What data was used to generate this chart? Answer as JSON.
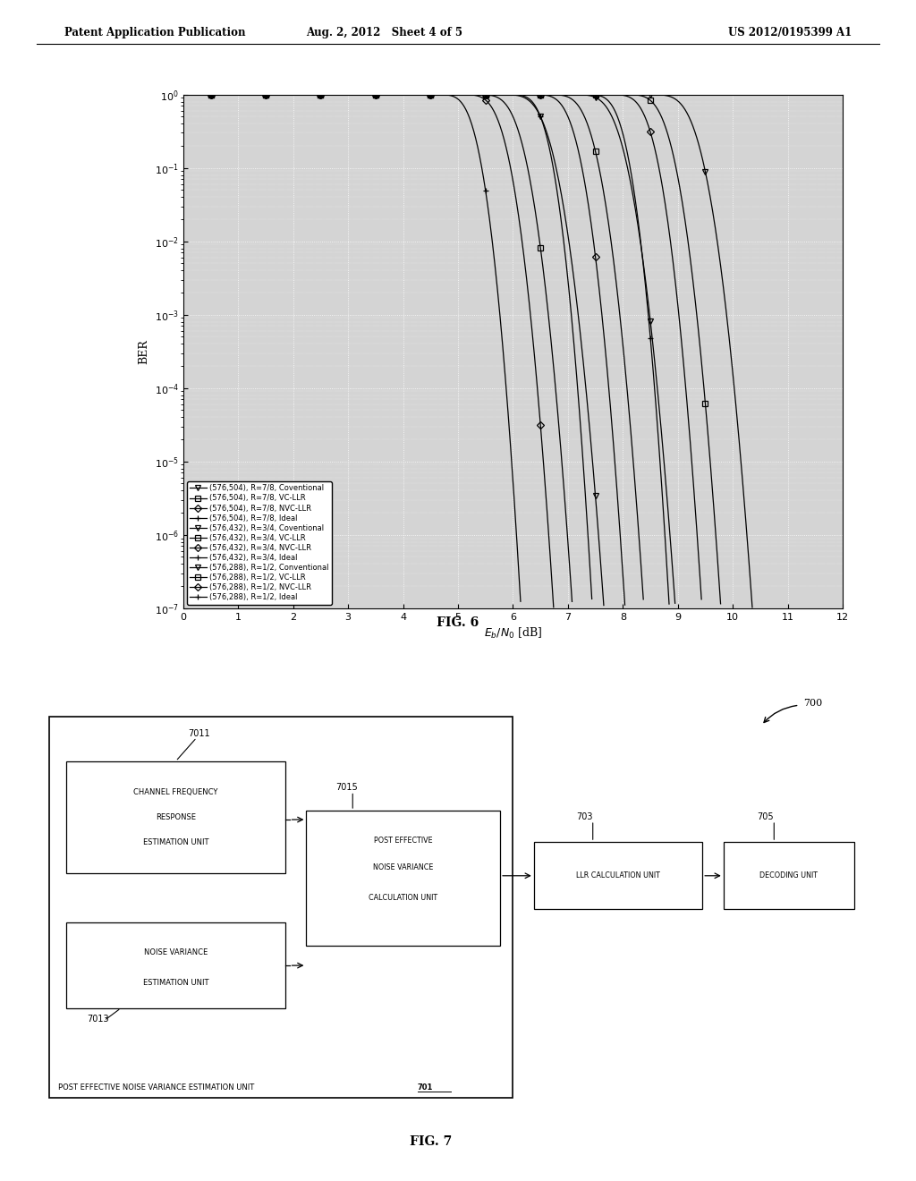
{
  "header_left": "Patent Application Publication",
  "header_center": "Aug. 2, 2012   Sheet 4 of 5",
  "header_right": "US 2012/0195399 A1",
  "fig6_title": "FIG. 6",
  "fig7_title": "FIG. 7",
  "xlabel": "$E_b/N_0$ [dB]",
  "ylabel": "BER",
  "xmin": 0,
  "xmax": 12,
  "ymin": 1e-07,
  "ymax": 1.0,
  "legend_entries": [
    "(576,504), R=7/8, Coventional",
    "(576,504), R=7/8, VC-LLR",
    "(576,504), R=7/8, NVC-LLR",
    "(576,504), R=7/8, Ideal",
    "(576,432), R=3/4, Coventional",
    "(576,432), R=3/4, VC-LLR",
    "(576,432), R=3/4, NVC-LLR",
    "(576,432), R=3/4, Ideal",
    "(576,288), R=1/2, Conventional",
    "(576,288), R=1/2, VC-LLR",
    "(576,288), R=1/2, NVC-LLR",
    "(576,288), R=1/2, Ideal"
  ],
  "markers": [
    "v",
    "s",
    "D",
    "+",
    "v",
    "s",
    "D",
    "+",
    "v",
    "s",
    "D",
    "+"
  ],
  "curve_params": [
    [
      6.5,
      4.5
    ],
    [
      6.0,
      4.8
    ],
    [
      5.7,
      5.0
    ],
    [
      5.2,
      5.5
    ],
    [
      7.8,
      4.5
    ],
    [
      7.3,
      4.8
    ],
    [
      7.0,
      5.0
    ],
    [
      6.5,
      5.5
    ],
    [
      9.2,
      4.5
    ],
    [
      8.7,
      4.8
    ],
    [
      8.4,
      5.0
    ],
    [
      7.9,
      5.5
    ]
  ],
  "plot_bg": "#cccccc",
  "fig6_label": "FIG. 6",
  "fig7_label": "FIG. 7"
}
